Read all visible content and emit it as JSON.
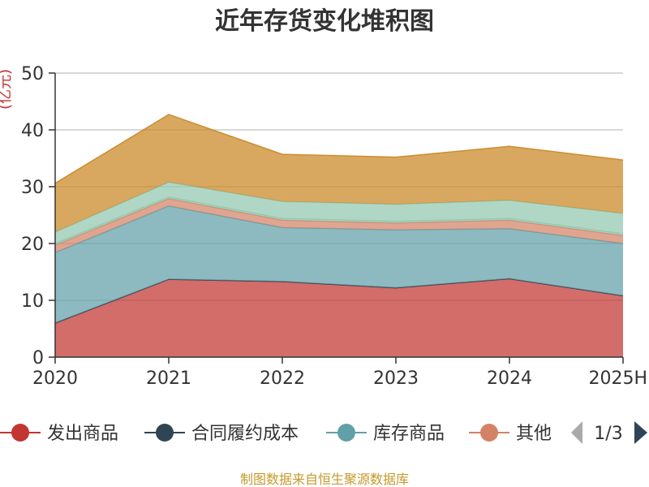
{
  "chart_data": {
    "type": "area",
    "title": "近年存货变化堆积图",
    "ylabel": "(亿元)",
    "xlabel": "",
    "categories": [
      "2020",
      "2021",
      "2022",
      "2023",
      "2024",
      "2025H"
    ],
    "ylim": [
      0,
      50
    ],
    "yticks": [
      0,
      10,
      20,
      30,
      40,
      50
    ],
    "grid": true,
    "stacked": true,
    "series": [
      {
        "name": "发出商品",
        "color": "#c23531",
        "values": [
          6.0,
          13.7,
          13.3,
          12.2,
          13.8,
          10.8
        ]
      },
      {
        "name": "合同履约成本",
        "color": "#2f4554",
        "values": [
          0,
          0,
          0,
          0,
          0,
          0
        ]
      },
      {
        "name": "库存商品",
        "color": "#61a0a8",
        "values": [
          12.4,
          12.9,
          9.5,
          10.2,
          8.8,
          9.2
        ]
      },
      {
        "name": "其他",
        "color": "#d48265",
        "values": [
          1.3,
          1.3,
          1.3,
          1.2,
          1.5,
          1.4
        ]
      },
      {
        "name": "",
        "color": "#91c7ae",
        "values": [
          0.3,
          0.3,
          0.3,
          0.3,
          0.3,
          0.3
        ]
      },
      {
        "name": "",
        "color": "#91c7ae",
        "values": [
          2.0,
          2.6,
          3.0,
          3.0,
          3.2,
          3.6
        ]
      },
      {
        "name": "",
        "color": "#ca8622",
        "values": [
          8.6,
          11.9,
          8.3,
          8.3,
          9.5,
          9.4
        ]
      }
    ],
    "legend": {
      "placement": "bottom",
      "items": [
        "发出商品",
        "合同履约成本",
        "库存商品",
        "其他"
      ],
      "page": "1/3"
    }
  },
  "source_note": "制图数据来自恒生聚源数据库"
}
